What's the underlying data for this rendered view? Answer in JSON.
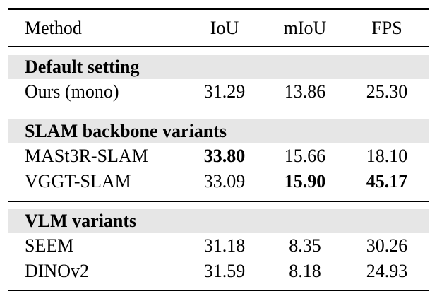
{
  "table": {
    "header": [
      "Method",
      "IoU",
      "mIoU",
      "FPS"
    ],
    "groups": [
      {
        "title": "Default setting",
        "rows": [
          {
            "cells": [
              "Ours (mono)",
              "31.29",
              "13.86",
              "25.30"
            ],
            "bold": []
          }
        ]
      },
      {
        "title": "SLAM backbone variants",
        "rows": [
          {
            "cells": [
              "MASt3R-SLAM",
              "33.80",
              "15.66",
              "18.10"
            ],
            "bold": [
              1
            ]
          },
          {
            "cells": [
              "VGGT-SLAM",
              "33.09",
              "15.90",
              "45.17"
            ],
            "bold": [
              2,
              3
            ]
          }
        ]
      },
      {
        "title": "VLM variants",
        "rows": [
          {
            "cells": [
              "SEEM",
              "31.18",
              "8.35",
              "30.26"
            ],
            "bold": []
          },
          {
            "cells": [
              "DINOv2",
              "31.59",
              "8.18",
              "24.93"
            ],
            "bold": []
          }
        ]
      }
    ]
  }
}
